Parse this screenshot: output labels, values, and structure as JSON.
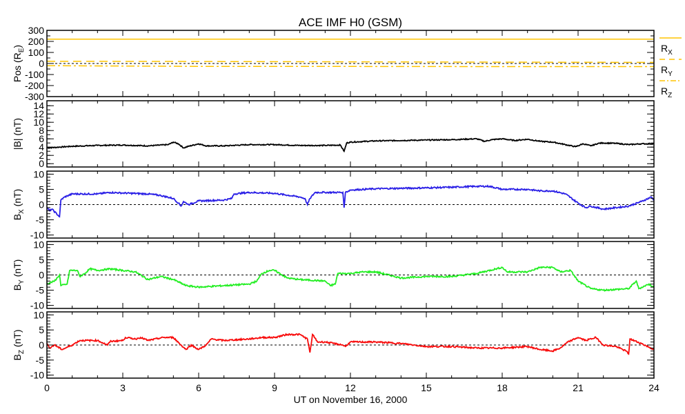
{
  "chart_data": {
    "type": "line",
    "title": "ACE IMF H0 (GSM)",
    "xlabel": "UT on November 16, 2000",
    "xlim": [
      0,
      24
    ],
    "xticks": [
      "0",
      "3",
      "6",
      "9",
      "12",
      "15",
      "18",
      "21",
      "24"
    ],
    "panels": [
      {
        "id": "pos",
        "ylabel": {
          "main": "Pos (R",
          "sub": "E",
          "unit": ")"
        },
        "ylim": [
          -300,
          300
        ],
        "yticks": [
          "300",
          "200",
          "100",
          "0",
          "-100",
          "-200",
          "-300"
        ],
        "ytick_values": [
          300,
          200,
          100,
          0,
          -100,
          -200,
          -300
        ],
        "zero_line": true,
        "legend": "right",
        "series": [
          {
            "name": "R",
            "sub": "X",
            "color": "#ffc400",
            "dash": "solid",
            "x": [
              0,
              24
            ],
            "y": [
              220,
              220
            ]
          },
          {
            "name": "R",
            "sub": "Y",
            "color": "#ffc400",
            "dash": "dashed",
            "x": [
              0,
              6,
              12,
              18,
              24
            ],
            "y": [
              20,
              18,
              15,
              12,
              10
            ]
          },
          {
            "name": "R",
            "sub": "Z",
            "color": "#ffc400",
            "dash": "dashdot",
            "x": [
              0,
              6,
              12,
              18,
              24
            ],
            "y": [
              -20,
              -26,
              -27,
              -28,
              -28
            ]
          }
        ]
      },
      {
        "id": "btotal",
        "ylabel": {
          "main": "|B| (nT)",
          "sub": "",
          "unit": ""
        },
        "ylim": [
          -0.8,
          15.2
        ],
        "yticks": [
          "14",
          "12",
          "10",
          "8",
          "6",
          "4",
          "2",
          "0"
        ],
        "ytick_values": [
          14,
          12,
          10,
          8,
          6,
          4,
          2,
          0
        ],
        "zero_line": false,
        "series": [
          {
            "name": "|B|",
            "color": "#000000",
            "x": [
              0,
              0.5,
              1,
              2,
              3,
              4,
              4.8,
              5,
              5.2,
              5.4,
              5.6,
              6,
              6.3,
              7,
              8,
              9,
              10,
              11,
              11.6,
              11.75,
              11.85,
              12,
              13,
              14,
              15,
              16,
              17,
              17.3,
              17.6,
              18,
              18.5,
              19,
              19.5,
              20,
              20.5,
              20.9,
              21.2,
              21.5,
              21.8,
              22,
              22.5,
              23,
              23.5,
              24
            ],
            "y": [
              3.8,
              4,
              4.2,
              4.4,
              4.5,
              4.3,
              4.6,
              5.2,
              4.8,
              3.8,
              4.2,
              4.8,
              4.3,
              4.3,
              4.6,
              4.6,
              4.4,
              4.4,
              4.5,
              3.0,
              5.0,
              5.2,
              5.5,
              5.6,
              5.7,
              5.8,
              6.0,
              5.4,
              5.8,
              6.0,
              5.6,
              5.9,
              5.4,
              5.2,
              4.6,
              4.1,
              4.8,
              4.3,
              4.9,
              5.0,
              4.9,
              4.6,
              4.8,
              4.8
            ]
          }
        ]
      },
      {
        "id": "bx",
        "ylabel": {
          "main": "B",
          "sub": "X",
          "unit": " (nT)"
        },
        "ylim": [
          -11,
          11
        ],
        "yticks": [
          "10",
          "5",
          "0",
          "-5",
          "-10"
        ],
        "ytick_values": [
          10,
          5,
          0,
          -5,
          -10
        ],
        "zero_line": true,
        "series": [
          {
            "name": "Bx",
            "color": "#2a1fe6",
            "x": [
              0,
              0.1,
              0.2,
              0.5,
              0.55,
              0.7,
              1,
              2,
              2.5,
              3,
              4,
              4.5,
              5,
              5.2,
              5.3,
              5.4,
              5.6,
              6,
              7,
              7.3,
              7.4,
              8,
              9,
              10,
              10.2,
              10.3,
              10.4,
              10.6,
              11,
              11.7,
              11.75,
              11.8,
              12,
              13,
              15,
              16,
              17,
              17.5,
              18,
              19,
              19.5,
              20,
              20.5,
              21,
              21.3,
              21.5,
              22,
              22.5,
              23,
              23.5,
              23.9,
              24
            ],
            "y": [
              -1,
              -2,
              -1.5,
              -4,
              1.5,
              2.5,
              3.5,
              3.5,
              4,
              3.8,
              3.5,
              3,
              2,
              0.5,
              -0.5,
              1,
              0,
              1.2,
              1.5,
              2,
              3.5,
              4,
              3.7,
              2.5,
              2,
              0,
              2,
              4,
              4,
              4,
              -1,
              4,
              4.8,
              5.2,
              5.5,
              5.7,
              6,
              6,
              5,
              5,
              4.5,
              4.5,
              3.5,
              0.5,
              -1,
              -0.5,
              -1.5,
              -1,
              -0.5,
              1,
              2.5,
              1.5
            ]
          }
        ]
      },
      {
        "id": "by",
        "ylabel": {
          "main": "B",
          "sub": "Y",
          "unit": " (nT)"
        },
        "ylim": [
          -11,
          11
        ],
        "yticks": [
          "10",
          "5",
          "0",
          "-5",
          "-10"
        ],
        "ytick_values": [
          10,
          5,
          0,
          -5,
          -10
        ],
        "zero_line": true,
        "series": [
          {
            "name": "By",
            "color": "#22ee22",
            "x": [
              0,
              0.3,
              0.5,
              0.55,
              0.8,
              0.9,
              1.2,
              1.3,
              1.5,
              1.7,
              2,
              2.5,
              3,
              3.5,
              4,
              4.5,
              5,
              5.5,
              6,
              7,
              8,
              8.3,
              8.5,
              8.8,
              9,
              9.5,
              10,
              11,
              11.2,
              11.4,
              11.5,
              12,
              12.5,
              13,
              14,
              15,
              16,
              17,
              18,
              18.2,
              19,
              19.5,
              20,
              20.3,
              20.7,
              21,
              21.5,
              22,
              23,
              23.3,
              23.4,
              23.8,
              24
            ],
            "y": [
              -3,
              -2,
              0,
              -3.5,
              -3,
              1.5,
              1.5,
              -0.5,
              0.5,
              2,
              1.5,
              2,
              1.5,
              1,
              -1.5,
              -0.5,
              -1.5,
              -3.5,
              -4,
              -3.5,
              -3,
              -2,
              0.5,
              1.5,
              1.5,
              -1,
              -1.5,
              -2,
              -3.5,
              -3,
              0.5,
              0.5,
              1,
              1,
              -1,
              -0.5,
              -0.5,
              0.5,
              2.5,
              1,
              1,
              2.5,
              2.5,
              1,
              1.5,
              -2,
              -4.5,
              -5,
              -4.5,
              -2,
              -4.5,
              -3,
              -4
            ]
          }
        ]
      },
      {
        "id": "bz",
        "ylabel": {
          "main": "B",
          "sub": "Z",
          "unit": " (nT)"
        },
        "ylim": [
          -11,
          11
        ],
        "yticks": [
          "10",
          "5",
          "0",
          "-5",
          "-10"
        ],
        "ytick_values": [
          10,
          5,
          0,
          -5,
          -10
        ],
        "zero_line": true,
        "series": [
          {
            "name": "Bz",
            "color": "#f80a0a",
            "x": [
              0,
              0.1,
              0.3,
              0.6,
              1,
              1.3,
              2,
              2.4,
              2.5,
              3,
              3.1,
              3.5,
              3.7,
              4,
              4.6,
              5,
              5.3,
              5.5,
              5.7,
              6,
              6.3,
              6.5,
              7,
              8,
              8.5,
              9,
              9.5,
              10,
              10.3,
              10.4,
              10.5,
              10.7,
              11,
              11.7,
              11.8,
              12,
              13,
              14,
              14.5,
              15,
              16,
              17,
              18,
              19,
              19.5,
              20,
              20.3,
              20.6,
              21,
              21.3,
              21.7,
              22,
              22.5,
              22.9,
              23,
              23.05,
              23.5,
              24
            ],
            "y": [
              0.5,
              -1,
              0,
              -1.5,
              0,
              1.5,
              1.5,
              0,
              1.2,
              1.5,
              2.5,
              2,
              2.5,
              1.5,
              2.5,
              2.5,
              0,
              -1.5,
              0,
              -1.5,
              0,
              2,
              1.5,
              2,
              2.5,
              2.5,
              3.5,
              3.5,
              2,
              -2.5,
              3.5,
              1,
              1,
              0,
              -0.5,
              1,
              1,
              0.5,
              0,
              -0.5,
              -0.5,
              -1,
              -1,
              -0.5,
              -1.5,
              -2,
              -1,
              1,
              2.5,
              1.5,
              2.5,
              0,
              -0.5,
              -2,
              -3,
              2,
              0.5,
              -1.5
            ]
          }
        ]
      }
    ]
  }
}
